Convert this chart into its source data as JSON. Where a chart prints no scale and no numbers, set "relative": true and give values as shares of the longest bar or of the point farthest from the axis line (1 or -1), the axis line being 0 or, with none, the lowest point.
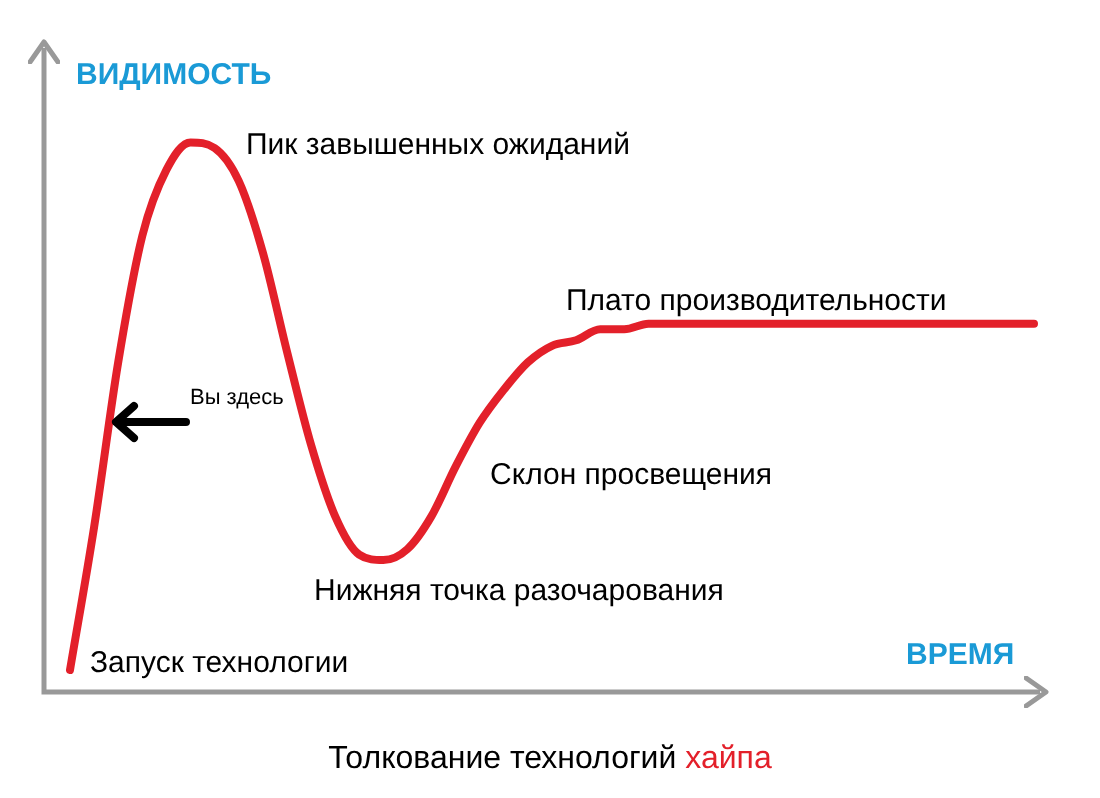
{
  "chart_data": {
    "type": "line",
    "title": "Толкование технологий хайпа",
    "xlabel": "ВРЕМЯ",
    "ylabel": "ВИДИМОСТЬ",
    "relative": true,
    "tick_labels": false,
    "grid": false,
    "legend": false,
    "marker": "none",
    "line_style": "solid",
    "categories": [
      null,
      null,
      null,
      null,
      null,
      null,
      null,
      null,
      null,
      null,
      null,
      null,
      null,
      null,
      null,
      null,
      null,
      null,
      null,
      null,
      null,
      null,
      null,
      null,
      null,
      null,
      null,
      null,
      null,
      null,
      null,
      null,
      null,
      null,
      null,
      null,
      null,
      null,
      null,
      null,
      null
    ],
    "series": [
      {
        "color": "#e3202a",
        "values": [
          0.04,
          0.3,
          0.6,
          0.83,
          0.95,
          1,
          0.99,
          0.93,
          0.8,
          0.62,
          0.45,
          0.32,
          0.25,
          0.24,
          0.26,
          0.32,
          0.41,
          0.49,
          0.55,
          0.6,
          0.63,
          0.64,
          0.66,
          0.66,
          0.67,
          0.67,
          0.67,
          0.67,
          0.67,
          0.67,
          0.67,
          0.67,
          0.67,
          0.67,
          0.67,
          0.67,
          0.67,
          0.67,
          0.67,
          0.67,
          0.67
        ]
      }
    ],
    "annotations": [
      "Пик завышенных ожиданий",
      "Плато производительности",
      "Вы здесь",
      "Склон просвещения",
      "Нижняя точка разочарования",
      "Запуск технологии"
    ]
  }
}
